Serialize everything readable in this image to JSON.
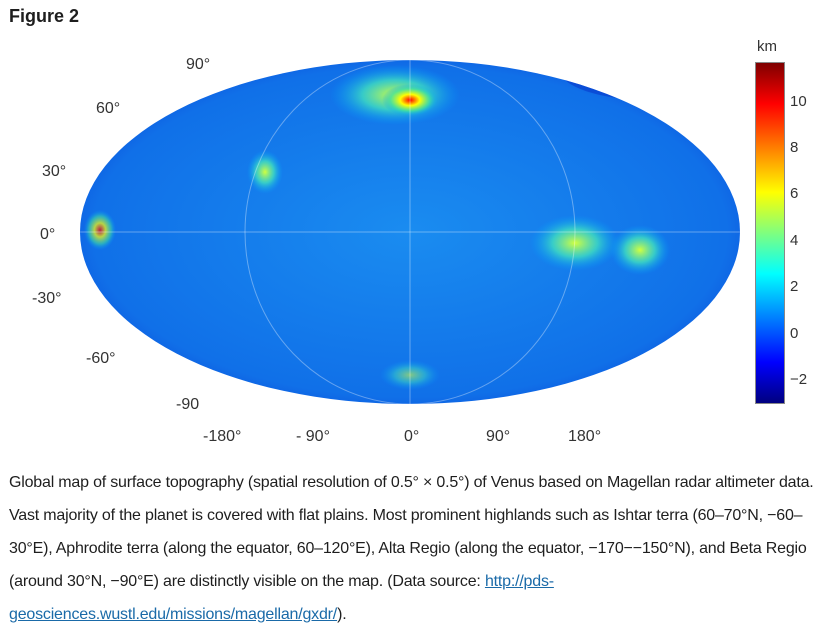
{
  "figure": {
    "title": "Figure 2"
  },
  "map": {
    "lat_labels": [
      "90°",
      "60°",
      "30°",
      "0°",
      "-30°",
      "-60°",
      "-90"
    ],
    "lon_labels": [
      "-180°",
      "- 90°",
      "0°",
      "90°",
      "180°"
    ]
  },
  "colorbar": {
    "unit": "km",
    "ticks": [
      "10",
      "8",
      "6",
      "4",
      "2",
      "0",
      "−2"
    ],
    "range": [
      -3,
      12
    ]
  },
  "caption": {
    "text": "Global map of surface topography (spatial resolution of 0.5° × 0.5°) of Venus based on Magellan radar altimeter data. Vast majority of the planet is covered with flat plains. Most prominent highlands such as Ishtar terra (60–70°N, −60–30°E), Aphrodite terra (along the equator, 60–120°E), Alta Regio (along the equator, −170−−150°N), and Beta Regio (around 30°N, −90°E) are distinctly visible on the map. (Data source: ",
    "link": "http://pds-geosciences.wustl.edu/missions/magellan/gxdr/",
    "end": ")."
  }
}
